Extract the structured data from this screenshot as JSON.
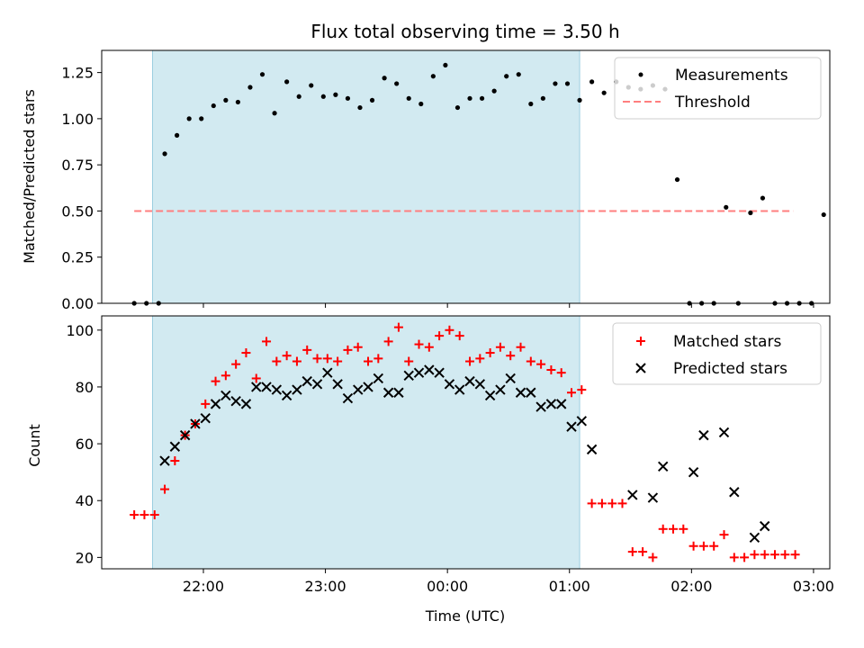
{
  "title": "Flux total observing time = 3.50 h",
  "colors": {
    "shade": "#add8e6",
    "shade_edge": "#9ccfe0",
    "measurements": "#000000",
    "threshold": "#ff7f7f",
    "matched": "#ff0000",
    "predicted": "#000000"
  },
  "chart_data": [
    {
      "type": "scatter",
      "ylabel": "Matched/Predicted stars",
      "xlim": [
        "21:10",
        "03:08"
      ],
      "ylim": [
        0,
        1.37
      ],
      "yticks": [
        "0.00",
        "0.25",
        "0.50",
        "0.75",
        "1.00",
        "1.25"
      ],
      "xtick_marks": [
        "22:00",
        "23:00",
        "00:00",
        "01:00",
        "02:00",
        "03:00"
      ],
      "shaded_interval": [
        "21:35",
        "01:05"
      ],
      "legend": {
        "position": "top-right",
        "measurements_label": "Measurements",
        "threshold_label": "Threshold"
      },
      "threshold": {
        "y": 0.5,
        "x_range": [
          "21:26",
          "02:50"
        ]
      },
      "measurements": [
        {
          "x": "21:26",
          "y": 0.0
        },
        {
          "x": "21:32",
          "y": 0.0
        },
        {
          "x": "21:38",
          "y": 0.0
        },
        {
          "x": "21:41",
          "y": 0.81
        },
        {
          "x": "21:47",
          "y": 0.91
        },
        {
          "x": "21:53",
          "y": 1.0
        },
        {
          "x": "21:59",
          "y": 1.0
        },
        {
          "x": "22:05",
          "y": 1.07
        },
        {
          "x": "22:11",
          "y": 1.1
        },
        {
          "x": "22:17",
          "y": 1.09
        },
        {
          "x": "22:23",
          "y": 1.17
        },
        {
          "x": "22:29",
          "y": 1.24
        },
        {
          "x": "22:35",
          "y": 1.03
        },
        {
          "x": "22:41",
          "y": 1.2
        },
        {
          "x": "22:47",
          "y": 1.12
        },
        {
          "x": "22:53",
          "y": 1.18
        },
        {
          "x": "22:59",
          "y": 1.12
        },
        {
          "x": "23:05",
          "y": 1.13
        },
        {
          "x": "23:11",
          "y": 1.11
        },
        {
          "x": "23:17",
          "y": 1.06
        },
        {
          "x": "23:23",
          "y": 1.1
        },
        {
          "x": "23:29",
          "y": 1.22
        },
        {
          "x": "23:35",
          "y": 1.19
        },
        {
          "x": "23:41",
          "y": 1.11
        },
        {
          "x": "23:47",
          "y": 1.08
        },
        {
          "x": "23:53",
          "y": 1.23
        },
        {
          "x": "23:59",
          "y": 1.29
        },
        {
          "x": "00:05",
          "y": 1.06
        },
        {
          "x": "00:11",
          "y": 1.11
        },
        {
          "x": "00:17",
          "y": 1.11
        },
        {
          "x": "00:23",
          "y": 1.15
        },
        {
          "x": "00:29",
          "y": 1.23
        },
        {
          "x": "00:35",
          "y": 1.24
        },
        {
          "x": "00:41",
          "y": 1.08
        },
        {
          "x": "00:47",
          "y": 1.11
        },
        {
          "x": "00:53",
          "y": 1.19
        },
        {
          "x": "00:59",
          "y": 1.19
        },
        {
          "x": "01:05",
          "y": 1.1
        },
        {
          "x": "01:11",
          "y": 1.2
        },
        {
          "x": "01:17",
          "y": 1.14
        },
        {
          "x": "01:23",
          "y": 1.2
        },
        {
          "x": "01:29",
          "y": 1.17
        },
        {
          "x": "01:35",
          "y": 1.16
        },
        {
          "x": "01:41",
          "y": 1.18
        },
        {
          "x": "01:47",
          "y": 1.16
        },
        {
          "x": "01:53",
          "y": 0.67
        },
        {
          "x": "01:59",
          "y": 0.0
        },
        {
          "x": "02:05",
          "y": 0.0
        },
        {
          "x": "02:11",
          "y": 0.0
        },
        {
          "x": "02:17",
          "y": 0.52
        },
        {
          "x": "02:23",
          "y": 0.0
        },
        {
          "x": "02:29",
          "y": 0.49
        },
        {
          "x": "02:35",
          "y": 0.57
        },
        {
          "x": "02:41",
          "y": 0.0
        },
        {
          "x": "02:47",
          "y": 0.0
        },
        {
          "x": "02:53",
          "y": 0.0
        },
        {
          "x": "02:59",
          "y": 0.0
        },
        {
          "x": "03:05",
          "y": 0.48
        }
      ]
    },
    {
      "type": "scatter",
      "xlabel": "Time (UTC)",
      "ylabel": "Count",
      "xlim": [
        "21:10",
        "03:08"
      ],
      "ylim": [
        16,
        105
      ],
      "yticks": [
        "20",
        "40",
        "60",
        "80",
        "100"
      ],
      "xticks": [
        "22:00",
        "23:00",
        "00:00",
        "01:00",
        "02:00",
        "03:00"
      ],
      "shaded_interval": [
        "21:35",
        "01:05"
      ],
      "legend": {
        "position": "top-right"
      },
      "series": [
        {
          "name": "Matched stars",
          "marker": "plus",
          "points": [
            {
              "x": "21:26",
              "y": 35
            },
            {
              "x": "21:31",
              "y": 35
            },
            {
              "x": "21:36",
              "y": 35
            },
            {
              "x": "21:41",
              "y": 44
            },
            {
              "x": "21:46",
              "y": 54
            },
            {
              "x": "21:51",
              "y": 63
            },
            {
              "x": "21:56",
              "y": 67
            },
            {
              "x": "22:01",
              "y": 74
            },
            {
              "x": "22:06",
              "y": 82
            },
            {
              "x": "22:11",
              "y": 84
            },
            {
              "x": "22:16",
              "y": 88
            },
            {
              "x": "22:21",
              "y": 92
            },
            {
              "x": "22:26",
              "y": 83
            },
            {
              "x": "22:31",
              "y": 96
            },
            {
              "x": "22:36",
              "y": 89
            },
            {
              "x": "22:41",
              "y": 91
            },
            {
              "x": "22:46",
              "y": 89
            },
            {
              "x": "22:51",
              "y": 93
            },
            {
              "x": "22:56",
              "y": 90
            },
            {
              "x": "23:01",
              "y": 90
            },
            {
              "x": "23:06",
              "y": 89
            },
            {
              "x": "23:11",
              "y": 93
            },
            {
              "x": "23:16",
              "y": 94
            },
            {
              "x": "23:21",
              "y": 89
            },
            {
              "x": "23:26",
              "y": 90
            },
            {
              "x": "23:31",
              "y": 96
            },
            {
              "x": "23:36",
              "y": 101
            },
            {
              "x": "23:41",
              "y": 89
            },
            {
              "x": "23:46",
              "y": 95
            },
            {
              "x": "23:51",
              "y": 94
            },
            {
              "x": "23:56",
              "y": 98
            },
            {
              "x": "00:01",
              "y": 100
            },
            {
              "x": "00:06",
              "y": 98
            },
            {
              "x": "00:11",
              "y": 89
            },
            {
              "x": "00:16",
              "y": 90
            },
            {
              "x": "00:21",
              "y": 92
            },
            {
              "x": "00:26",
              "y": 94
            },
            {
              "x": "00:31",
              "y": 91
            },
            {
              "x": "00:36",
              "y": 94
            },
            {
              "x": "00:41",
              "y": 89
            },
            {
              "x": "00:46",
              "y": 88
            },
            {
              "x": "00:51",
              "y": 86
            },
            {
              "x": "00:56",
              "y": 85
            },
            {
              "x": "01:01",
              "y": 78
            },
            {
              "x": "01:06",
              "y": 79
            },
            {
              "x": "01:11",
              "y": 39
            },
            {
              "x": "01:16",
              "y": 39
            },
            {
              "x": "01:21",
              "y": 39
            },
            {
              "x": "01:26",
              "y": 39
            },
            {
              "x": "01:31",
              "y": 22
            },
            {
              "x": "01:36",
              "y": 22
            },
            {
              "x": "01:41",
              "y": 20
            },
            {
              "x": "01:46",
              "y": 30
            },
            {
              "x": "01:51",
              "y": 30
            },
            {
              "x": "01:56",
              "y": 30
            },
            {
              "x": "02:01",
              "y": 24
            },
            {
              "x": "02:06",
              "y": 24
            },
            {
              "x": "02:11",
              "y": 24
            },
            {
              "x": "02:16",
              "y": 28
            },
            {
              "x": "02:21",
              "y": 20
            },
            {
              "x": "02:26",
              "y": 20
            },
            {
              "x": "02:31",
              "y": 21
            },
            {
              "x": "02:36",
              "y": 21
            },
            {
              "x": "02:41",
              "y": 21
            },
            {
              "x": "02:46",
              "y": 21
            },
            {
              "x": "02:51",
              "y": 21
            }
          ]
        },
        {
          "name": "Predicted stars",
          "marker": "x",
          "points": [
            {
              "x": "21:41",
              "y": 54
            },
            {
              "x": "21:46",
              "y": 59
            },
            {
              "x": "21:51",
              "y": 63
            },
            {
              "x": "21:56",
              "y": 67
            },
            {
              "x": "22:01",
              "y": 69
            },
            {
              "x": "22:06",
              "y": 74
            },
            {
              "x": "22:11",
              "y": 77
            },
            {
              "x": "22:16",
              "y": 75
            },
            {
              "x": "22:21",
              "y": 74
            },
            {
              "x": "22:26",
              "y": 80
            },
            {
              "x": "22:31",
              "y": 80
            },
            {
              "x": "22:36",
              "y": 79
            },
            {
              "x": "22:41",
              "y": 77
            },
            {
              "x": "22:46",
              "y": 79
            },
            {
              "x": "22:51",
              "y": 82
            },
            {
              "x": "22:56",
              "y": 81
            },
            {
              "x": "23:01",
              "y": 85
            },
            {
              "x": "23:06",
              "y": 81
            },
            {
              "x": "23:11",
              "y": 76
            },
            {
              "x": "23:16",
              "y": 79
            },
            {
              "x": "23:21",
              "y": 80
            },
            {
              "x": "23:26",
              "y": 83
            },
            {
              "x": "23:31",
              "y": 78
            },
            {
              "x": "23:36",
              "y": 78
            },
            {
              "x": "23:41",
              "y": 84
            },
            {
              "x": "23:46",
              "y": 85
            },
            {
              "x": "23:51",
              "y": 86
            },
            {
              "x": "23:56",
              "y": 85
            },
            {
              "x": "00:01",
              "y": 81
            },
            {
              "x": "00:06",
              "y": 79
            },
            {
              "x": "00:11",
              "y": 82
            },
            {
              "x": "00:16",
              "y": 81
            },
            {
              "x": "00:21",
              "y": 77
            },
            {
              "x": "00:26",
              "y": 79
            },
            {
              "x": "00:31",
              "y": 83
            },
            {
              "x": "00:36",
              "y": 78
            },
            {
              "x": "00:41",
              "y": 78
            },
            {
              "x": "00:46",
              "y": 73
            },
            {
              "x": "00:51",
              "y": 74
            },
            {
              "x": "00:56",
              "y": 74
            },
            {
              "x": "01:01",
              "y": 66
            },
            {
              "x": "01:06",
              "y": 68
            },
            {
              "x": "01:11",
              "y": 58
            },
            {
              "x": "01:31",
              "y": 42
            },
            {
              "x": "01:41",
              "y": 41
            },
            {
              "x": "01:46",
              "y": 52
            },
            {
              "x": "02:01",
              "y": 50
            },
            {
              "x": "02:06",
              "y": 63
            },
            {
              "x": "02:16",
              "y": 64
            },
            {
              "x": "02:21",
              "y": 43
            },
            {
              "x": "02:31",
              "y": 27
            },
            {
              "x": "02:36",
              "y": 31
            }
          ]
        }
      ]
    }
  ]
}
